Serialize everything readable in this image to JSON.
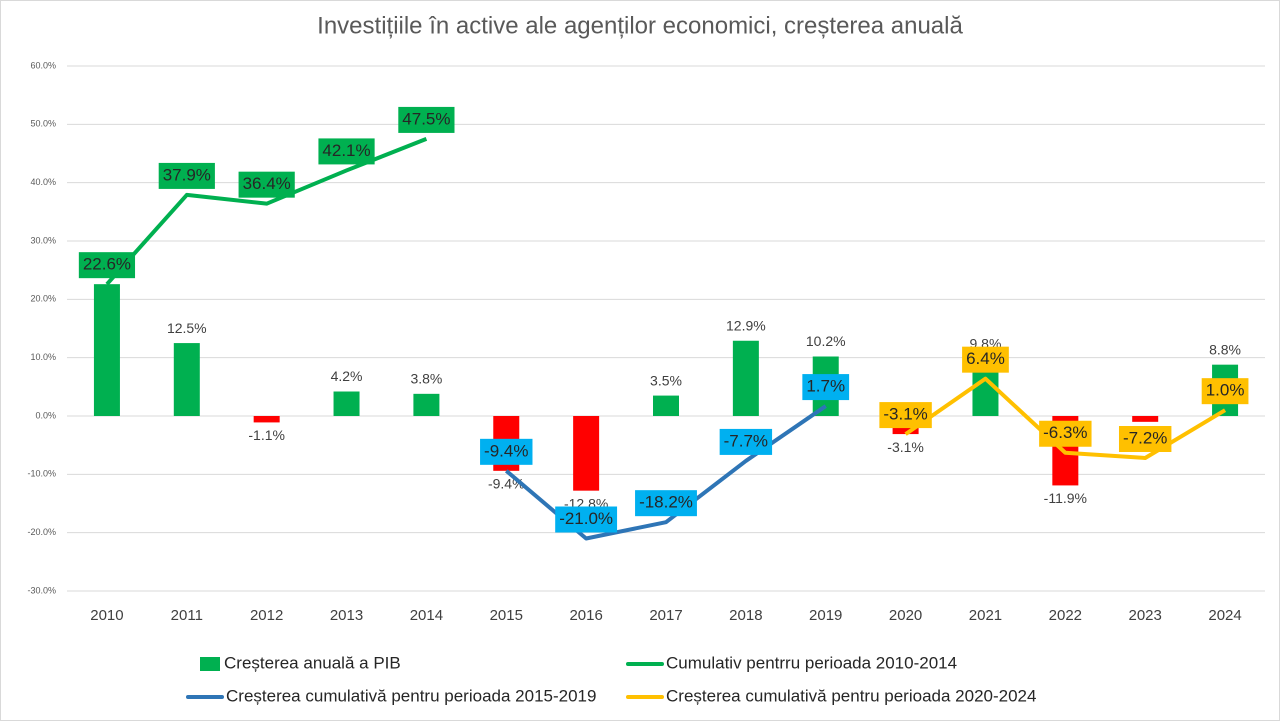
{
  "chart_data": {
    "type": "bar",
    "title": "Investițiile în active ale agenților economici, creșterea anuală",
    "categories": [
      "2010",
      "2011",
      "2012",
      "2013",
      "2014",
      "2015",
      "2016",
      "2017",
      "2018",
      "2019",
      "2020",
      "2021",
      "2022",
      "2023",
      "2024"
    ],
    "ylim": [
      -30,
      60
    ],
    "yticks": [
      {
        "value": -30,
        "label": "-30.0%"
      },
      {
        "value": -20,
        "label": "-20.0%"
      },
      {
        "value": -10,
        "label": "-10.0%"
      },
      {
        "value": 0,
        "label": "0.0%"
      },
      {
        "value": 10,
        "label": "10.0%"
      },
      {
        "value": 20,
        "label": "20.0%"
      },
      {
        "value": 30,
        "label": "30.0%"
      },
      {
        "value": 40,
        "label": "40.0%"
      },
      {
        "value": 50,
        "label": "50.0%"
      },
      {
        "value": 60,
        "label": "60.0%"
      }
    ],
    "grid": true,
    "bars": {
      "name": "Creșterea anuală a PIB",
      "color": "#00b050",
      "negative_color": "#ff0000",
      "values": [
        22.6,
        12.5,
        -1.1,
        4.2,
        3.8,
        -9.4,
        -12.8,
        3.5,
        12.9,
        10.2,
        -3.1,
        9.8,
        -11.9,
        -1.0,
        8.8
      ],
      "value_labels": [
        null,
        "12.5%",
        "-1.1%",
        "4.2%",
        "3.8%",
        "-9.4%",
        "-12.8%",
        "3.5%",
        "12.9%",
        "10.2%",
        "-3.1%",
        "9.8%",
        "-11.9%",
        null,
        "8.8%"
      ]
    },
    "series": [
      {
        "name": "Cumulativ pentrru perioada 2010-2014",
        "color": "#00b050",
        "label_color": "#00b050",
        "values": [
          22.6,
          37.9,
          36.4,
          42.1,
          47.5,
          null,
          null,
          null,
          null,
          null,
          null,
          null,
          null,
          null,
          null
        ],
        "value_labels": [
          "22.6%",
          "37.9%",
          "36.4%",
          "42.1%",
          "47.5%",
          null,
          null,
          null,
          null,
          null,
          null,
          null,
          null,
          null,
          null
        ]
      },
      {
        "name": "Creșterea cumulativă pentru perioada 2015-2019",
        "color": "#2e75b6",
        "label_color": "#00b0f0",
        "values": [
          null,
          null,
          null,
          null,
          null,
          -9.4,
          -21.0,
          -18.2,
          -7.7,
          1.7,
          null,
          null,
          null,
          null,
          null
        ],
        "value_labels": [
          null,
          null,
          null,
          null,
          null,
          "-9.4%",
          "-21.0%",
          "-18.2%",
          "-7.7%",
          "1.7%",
          null,
          null,
          null,
          null,
          null
        ]
      },
      {
        "name": "Creșterea cumulativă pentru perioada 2020-2024",
        "color": "#ffc000",
        "label_color": "#ffc000",
        "values": [
          null,
          null,
          null,
          null,
          null,
          null,
          null,
          null,
          null,
          null,
          -3.1,
          6.4,
          -6.3,
          -7.2,
          1.0
        ],
        "value_labels": [
          null,
          null,
          null,
          null,
          null,
          null,
          null,
          null,
          null,
          null,
          "-3.1%",
          "6.4%",
          "-6.3%",
          "-7.2%",
          "1.0%"
        ]
      }
    ]
  }
}
